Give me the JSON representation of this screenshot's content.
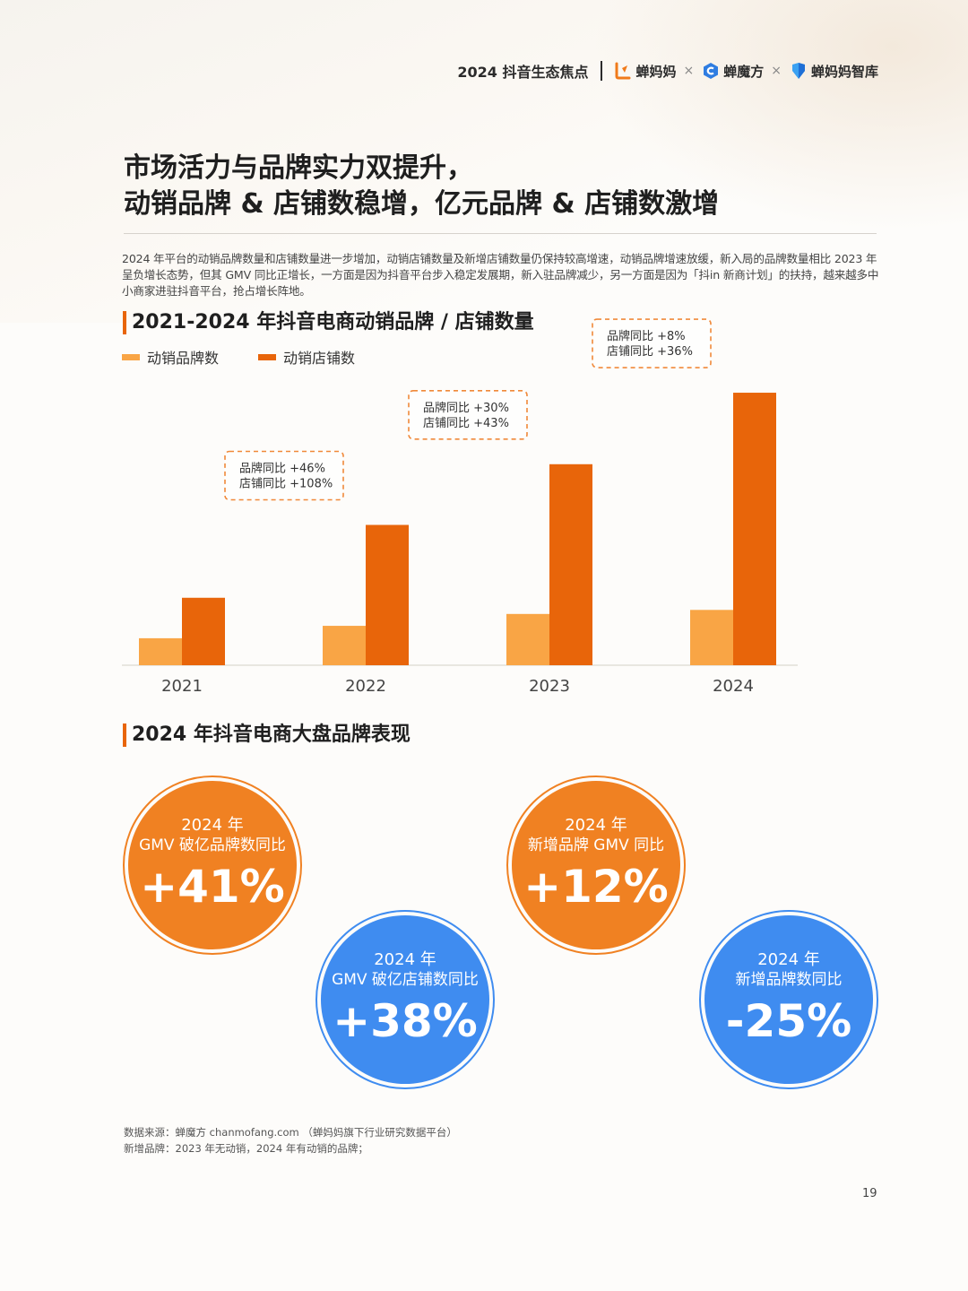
{
  "header": {
    "report_title": "2024 抖音生态焦点",
    "brands": [
      "蝉妈妈",
      "蝉魔方",
      "蝉妈妈智库"
    ],
    "separator": "×"
  },
  "title": {
    "line1": "市场活力与品牌实力双提升，",
    "line2": "动销品牌 & 店铺数稳增，亿元品牌 & 店铺数激增"
  },
  "intro": "2024 年平台的动销品牌数量和店铺数量进一步增加，动销店铺数量及新增店铺数量仍保持较高增速，动销品牌增速放缓，新入局的品牌数量相比 2023 年呈负增长态势，但其 GMV 同比正增长，一方面是因为抖音平台步入稳定发展期，新入驻品牌减少，另一方面是因为「抖in 新商计划」的扶持，越来越多中小商家进驻抖音平台，抢占增长阵地。",
  "colors": {
    "brand_bar": "#f9a545",
    "store_bar": "#e8650a",
    "orange_circle": "#f08122",
    "blue_circle": "#3f8cf0"
  },
  "chart_data": {
    "type": "bar",
    "title": "2021-2024 年抖音电商动销品牌 / 店铺数量",
    "categories": [
      "2021",
      "2022",
      "2023",
      "2024"
    ],
    "series": [
      {
        "name": "动销品牌数",
        "values": [
          1.0,
          1.46,
          1.9,
          2.05
        ]
      },
      {
        "name": "动销店铺数",
        "values": [
          2.5,
          5.2,
          7.45,
          10.1
        ]
      }
    ],
    "ylim": [
      0,
      10.5
    ],
    "grid": false,
    "legend": "top-left",
    "annotations": [
      {
        "category": "2022",
        "lines": [
          "品牌同比 +46%",
          "店铺同比 +108%"
        ]
      },
      {
        "category": "2023",
        "lines": [
          "品牌同比 +30%",
          "店铺同比 +43%"
        ]
      },
      {
        "category": "2024",
        "lines": [
          "品牌同比 +8%",
          "店铺同比 +36%"
        ]
      }
    ]
  },
  "section2": {
    "title": "2024 年抖音电商大盘品牌表现",
    "stats": [
      {
        "line1": "2024 年",
        "line2": "GMV 破亿品牌数同比",
        "value": "+41%",
        "color": "orange"
      },
      {
        "line1": "2024 年",
        "line2": "GMV 破亿店铺数同比",
        "value": "+38%",
        "color": "blue"
      },
      {
        "line1": "2024 年",
        "line2": "新增品牌 GMV 同比",
        "value": "+12%",
        "color": "orange"
      },
      {
        "line1": "2024 年",
        "line2": "新增品牌数同比",
        "value": "-25%",
        "color": "blue"
      }
    ]
  },
  "footnotes": {
    "source": "数据来源：蝉魔方 chanmofang.com （蝉妈妈旗下行业研究数据平台）",
    "definition": "新增品牌：2023 年无动销，2024 年有动销的品牌；"
  },
  "page_number": "19"
}
